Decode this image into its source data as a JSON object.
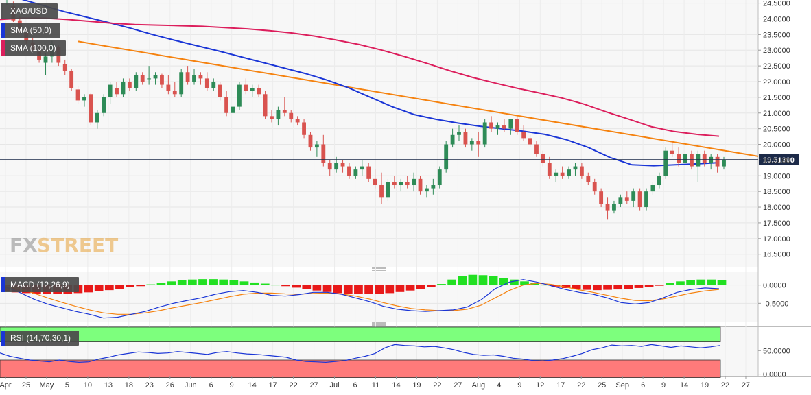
{
  "chart_data": {
    "type": "candlestick",
    "symbol": "XAG/USD",
    "last_price_label": "19.51300",
    "last_price": 19.513,
    "watermark": [
      "FX",
      "STREET"
    ],
    "price_axis": {
      "ylim": [
        16.1,
        24.6
      ],
      "ticks": [
        "24.5000",
        "24.0000",
        "23.5000",
        "23.0000",
        "22.5000",
        "22.0000",
        "21.5000",
        "21.0000",
        "20.5000",
        "20.0000",
        "19.5000",
        "19.0000",
        "18.5000",
        "18.0000",
        "17.5000",
        "17.0000",
        "16.5000"
      ]
    },
    "x_axis": {
      "labels": [
        "Apr",
        "25",
        "May",
        "5",
        "10",
        "13",
        "18",
        "23",
        "26",
        "Jun",
        "6",
        "9",
        "14",
        "17",
        "22",
        "27",
        "Jul",
        "6",
        "11",
        "14",
        "19",
        "22",
        "27",
        "Aug",
        "4",
        "9",
        "12",
        "17",
        "22",
        "25",
        "Sep",
        "6",
        "9",
        "14",
        "19",
        "22",
        "27"
      ]
    },
    "sma": [
      {
        "name": "SMA (50,0)",
        "color": "#1a35d6",
        "values": [
          24.85,
          24.62,
          24.42,
          24.22,
          24.05,
          23.88,
          23.7,
          23.5,
          23.32,
          23.15,
          22.98,
          22.8,
          22.62,
          22.44,
          22.26,
          22.05,
          21.8,
          21.5,
          21.2,
          20.95,
          20.8,
          20.68,
          20.58,
          20.5,
          20.42,
          20.32,
          20.15,
          19.9,
          19.58,
          19.35,
          19.32,
          19.35,
          19.38,
          19.42
        ]
      },
      {
        "name": "SMA (100,0)",
        "color": "#dc1e5c",
        "values": [
          23.98,
          24.02,
          24.02,
          23.98,
          23.92,
          23.86,
          23.82,
          23.8,
          23.78,
          23.76,
          23.72,
          23.68,
          23.62,
          23.55,
          23.45,
          23.32,
          23.18,
          23.0,
          22.8,
          22.58,
          22.35,
          22.14,
          21.96,
          21.79,
          21.64,
          21.48,
          21.28,
          21.03,
          20.8,
          20.56,
          20.41,
          20.32,
          20.26
        ]
      }
    ],
    "trendline": {
      "name": "Descending trendline",
      "color": "#f5820f",
      "from": [
        23.28
      ],
      "to": [
        19.62
      ]
    },
    "candles": [
      [
        24.6,
        24.9,
        24.45,
        24.85
      ],
      [
        24.4,
        24.55,
        23.9,
        23.95
      ],
      [
        23.95,
        24.1,
        23.55,
        23.6
      ],
      [
        23.55,
        23.7,
        23.2,
        23.3
      ],
      [
        23.25,
        23.4,
        22.95,
        23.0
      ],
      [
        22.95,
        23.1,
        22.6,
        22.7
      ],
      [
        22.6,
        22.9,
        22.2,
        22.8
      ],
      [
        22.8,
        23.3,
        22.6,
        23.2
      ],
      [
        23.1,
        23.15,
        22.5,
        22.6
      ],
      [
        22.55,
        22.7,
        22.2,
        22.35
      ],
      [
        22.35,
        22.4,
        21.7,
        21.8
      ],
      [
        21.75,
        21.85,
        21.3,
        21.4
      ],
      [
        21.4,
        21.6,
        21.2,
        21.5
      ],
      [
        21.6,
        21.65,
        20.6,
        20.7
      ],
      [
        20.7,
        21.1,
        20.5,
        21.0
      ],
      [
        21.0,
        21.6,
        20.9,
        21.5
      ],
      [
        21.5,
        22.0,
        21.3,
        21.9
      ],
      [
        21.8,
        22.0,
        21.5,
        21.6
      ],
      [
        21.6,
        22.1,
        21.5,
        22.0
      ],
      [
        22.0,
        22.1,
        21.7,
        21.8
      ],
      [
        21.8,
        22.3,
        21.7,
        22.2
      ],
      [
        22.2,
        22.3,
        21.9,
        22.0
      ],
      [
        22.1,
        22.5,
        21.9,
        22.1
      ],
      [
        22.1,
        22.3,
        21.9,
        22.2
      ],
      [
        22.2,
        22.25,
        21.8,
        21.9
      ],
      [
        21.9,
        22.2,
        21.6,
        21.7
      ],
      [
        21.7,
        22.0,
        21.5,
        21.6
      ],
      [
        21.6,
        22.4,
        21.5,
        22.3
      ],
      [
        22.3,
        22.5,
        21.9,
        22.0
      ],
      [
        22.0,
        22.4,
        21.9,
        22.2
      ],
      [
        22.2,
        22.3,
        21.9,
        22.1
      ],
      [
        22.1,
        22.3,
        21.7,
        21.8
      ],
      [
        21.8,
        22.1,
        21.7,
        22.0
      ],
      [
        21.9,
        22.0,
        21.4,
        21.5
      ],
      [
        21.5,
        21.7,
        20.9,
        21.0
      ],
      [
        21.0,
        21.3,
        20.9,
        21.2
      ],
      [
        21.2,
        22.0,
        21.1,
        21.9
      ],
      [
        21.9,
        22.1,
        21.6,
        21.7
      ],
      [
        21.7,
        21.9,
        21.5,
        21.8
      ],
      [
        21.8,
        21.9,
        21.5,
        21.6
      ],
      [
        21.6,
        21.7,
        20.8,
        20.9
      ],
      [
        20.9,
        21.1,
        20.7,
        20.8
      ],
      [
        20.8,
        21.2,
        20.6,
        21.1
      ],
      [
        21.1,
        21.5,
        20.9,
        21.0
      ],
      [
        21.0,
        21.1,
        20.7,
        20.8
      ],
      [
        20.8,
        20.9,
        20.6,
        20.7
      ],
      [
        20.7,
        20.8,
        20.2,
        20.3
      ],
      [
        20.3,
        20.4,
        19.8,
        19.9
      ],
      [
        19.9,
        20.1,
        19.6,
        20.0
      ],
      [
        20.0,
        20.3,
        19.3,
        19.4
      ],
      [
        19.4,
        19.5,
        19.0,
        19.2
      ],
      [
        19.2,
        19.6,
        19.1,
        19.4
      ],
      [
        19.4,
        19.5,
        19.1,
        19.3
      ],
      [
        19.3,
        19.4,
        18.9,
        19.0
      ],
      [
        19.0,
        19.3,
        18.9,
        19.2
      ],
      [
        19.2,
        19.5,
        19.0,
        19.3
      ],
      [
        19.3,
        19.4,
        18.8,
        18.9
      ],
      [
        18.9,
        19.2,
        18.6,
        18.7
      ],
      [
        18.7,
        19.1,
        18.1,
        18.3
      ],
      [
        18.3,
        18.9,
        18.2,
        18.8
      ],
      [
        18.8,
        19.0,
        18.6,
        18.7
      ],
      [
        18.7,
        18.9,
        18.5,
        18.8
      ],
      [
        18.8,
        19.0,
        18.6,
        18.7
      ],
      [
        18.7,
        19.1,
        18.5,
        18.9
      ],
      [
        18.9,
        19.0,
        18.4,
        18.5
      ],
      [
        18.5,
        18.7,
        18.3,
        18.6
      ],
      [
        18.6,
        18.9,
        18.4,
        18.7
      ],
      [
        18.7,
        19.3,
        18.6,
        19.2
      ],
      [
        19.2,
        20.1,
        19.1,
        20.0
      ],
      [
        20.0,
        20.5,
        19.9,
        20.3
      ],
      [
        20.3,
        20.6,
        20.1,
        20.4
      ],
      [
        20.4,
        20.5,
        19.9,
        20.0
      ],
      [
        20.0,
        20.2,
        19.8,
        20.1
      ],
      [
        20.1,
        20.4,
        19.6,
        20.0
      ],
      [
        20.0,
        20.8,
        19.9,
        20.7
      ],
      [
        20.7,
        20.9,
        20.4,
        20.5
      ],
      [
        20.5,
        20.7,
        20.3,
        20.6
      ],
      [
        20.6,
        20.8,
        20.4,
        20.5
      ],
      [
        20.5,
        20.8,
        20.3,
        20.8
      ],
      [
        20.8,
        20.9,
        20.3,
        20.4
      ],
      [
        20.4,
        20.6,
        20.1,
        20.2
      ],
      [
        20.2,
        20.3,
        19.9,
        20.0
      ],
      [
        20.0,
        20.1,
        19.6,
        19.7
      ],
      [
        19.7,
        19.8,
        19.3,
        19.4
      ],
      [
        19.4,
        19.6,
        18.9,
        19.0
      ],
      [
        19.0,
        19.2,
        18.8,
        19.1
      ],
      [
        19.1,
        19.3,
        18.9,
        19.0
      ],
      [
        19.0,
        19.3,
        18.9,
        19.2
      ],
      [
        19.2,
        19.4,
        19.0,
        19.3
      ],
      [
        19.3,
        19.4,
        18.9,
        19.0
      ],
      [
        19.0,
        19.1,
        18.7,
        18.8
      ],
      [
        18.8,
        18.9,
        18.4,
        18.5
      ],
      [
        18.5,
        18.6,
        18.0,
        18.1
      ],
      [
        18.1,
        18.3,
        17.6,
        17.9
      ],
      [
        17.9,
        18.2,
        17.8,
        18.1
      ],
      [
        18.1,
        18.4,
        18.0,
        18.3
      ],
      [
        18.3,
        18.5,
        18.1,
        18.2
      ],
      [
        18.2,
        18.6,
        18.0,
        18.5
      ],
      [
        18.5,
        18.6,
        17.9,
        18.0
      ],
      [
        18.0,
        18.6,
        17.9,
        18.5
      ],
      [
        18.5,
        18.8,
        18.4,
        18.7
      ],
      [
        18.7,
        19.1,
        18.6,
        19.0
      ],
      [
        19.0,
        19.9,
        18.9,
        19.8
      ],
      [
        19.8,
        20.1,
        19.6,
        19.7
      ],
      [
        19.7,
        19.9,
        19.3,
        19.4
      ],
      [
        19.4,
        19.8,
        19.3,
        19.7
      ],
      [
        19.7,
        19.8,
        19.2,
        19.3
      ],
      [
        19.3,
        19.8,
        18.8,
        19.7
      ],
      [
        19.7,
        19.8,
        19.3,
        19.4
      ],
      [
        19.4,
        19.7,
        19.2,
        19.6
      ],
      [
        19.6,
        19.7,
        19.1,
        19.3
      ],
      [
        19.3,
        19.6,
        19.2,
        19.5
      ]
    ],
    "macd": {
      "label": "MACD (12,26,9)",
      "ticks": [
        "0.0000",
        "-0.5000"
      ],
      "ylim": [
        -1.0,
        0.35
      ],
      "histogram": [
        -0.17,
        -0.2,
        -0.22,
        -0.24,
        -0.25,
        -0.25,
        -0.24,
        -0.22,
        -0.2,
        -0.17,
        -0.14,
        -0.1,
        -0.06,
        -0.03,
        0.02,
        0.06,
        0.1,
        0.13,
        0.15,
        0.16,
        0.16,
        0.15,
        0.13,
        0.1,
        0.07,
        0.04,
        0.01,
        -0.03,
        -0.07,
        -0.11,
        -0.15,
        -0.19,
        -0.22,
        -0.24,
        -0.25,
        -0.25,
        -0.24,
        -0.22,
        -0.19,
        -0.15,
        -0.1,
        -0.05,
        0.03,
        0.15,
        0.25,
        0.28,
        0.27,
        0.24,
        0.2,
        0.15,
        0.1,
        0.05,
        0.01,
        -0.04,
        -0.08,
        -0.11,
        -0.13,
        -0.14,
        -0.13,
        -0.12,
        -0.1,
        -0.08,
        -0.05,
        -0.01,
        0.05,
        0.1,
        0.13,
        0.15,
        0.15,
        0.14
      ],
      "macd_line": [
        -0.05,
        -0.2,
        -0.38,
        -0.52,
        -0.62,
        -0.72,
        -0.8,
        -0.9,
        -0.88,
        -0.8,
        -0.72,
        -0.6,
        -0.5,
        -0.42,
        -0.35,
        -0.25,
        -0.18,
        -0.15,
        -0.2,
        -0.28,
        -0.3,
        -0.26,
        -0.2,
        -0.2,
        -0.25,
        -0.35,
        -0.45,
        -0.58,
        -0.66,
        -0.7,
        -0.72,
        -0.7,
        -0.68,
        -0.6,
        -0.4,
        -0.1,
        0.08,
        0.15,
        0.08,
        -0.02,
        -0.12,
        -0.2,
        -0.25,
        -0.35,
        -0.48,
        -0.52,
        -0.48,
        -0.35,
        -0.2,
        -0.12,
        -0.08,
        -0.1
      ],
      "signal_line": [
        -0.02,
        -0.1,
        -0.22,
        -0.35,
        -0.47,
        -0.58,
        -0.68,
        -0.76,
        -0.8,
        -0.8,
        -0.76,
        -0.7,
        -0.62,
        -0.55,
        -0.48,
        -0.4,
        -0.32,
        -0.25,
        -0.22,
        -0.22,
        -0.24,
        -0.25,
        -0.23,
        -0.22,
        -0.24,
        -0.3,
        -0.38,
        -0.48,
        -0.57,
        -0.64,
        -0.68,
        -0.7,
        -0.7,
        -0.66,
        -0.55,
        -0.35,
        -0.15,
        0.0,
        0.05,
        0.02,
        -0.05,
        -0.13,
        -0.2,
        -0.28,
        -0.36,
        -0.42,
        -0.43,
        -0.38,
        -0.3,
        -0.22,
        -0.16,
        -0.12
      ]
    },
    "rsi": {
      "label": "RSI (14,70,30,1)",
      "ticks": [
        "50.0000",
        "0.0000"
      ],
      "ylim": [
        -5,
        100
      ],
      "overbought": 70,
      "oversold": 30,
      "values": [
        45,
        38,
        34,
        30,
        28,
        26,
        30,
        27,
        25,
        26,
        32,
        36,
        41,
        44,
        47,
        46,
        44,
        45,
        48,
        46,
        44,
        42,
        46,
        48,
        45,
        43,
        42,
        40,
        38,
        36,
        30,
        27,
        26,
        25,
        27,
        29,
        34,
        38,
        44,
        56,
        63,
        61,
        60,
        58,
        59,
        56,
        52,
        46,
        42,
        40,
        41,
        38,
        34,
        32,
        29,
        28,
        30,
        33,
        38,
        44,
        52,
        56,
        62,
        60,
        61,
        59,
        63,
        60,
        57,
        60,
        58,
        56,
        58,
        61
      ]
    }
  }
}
